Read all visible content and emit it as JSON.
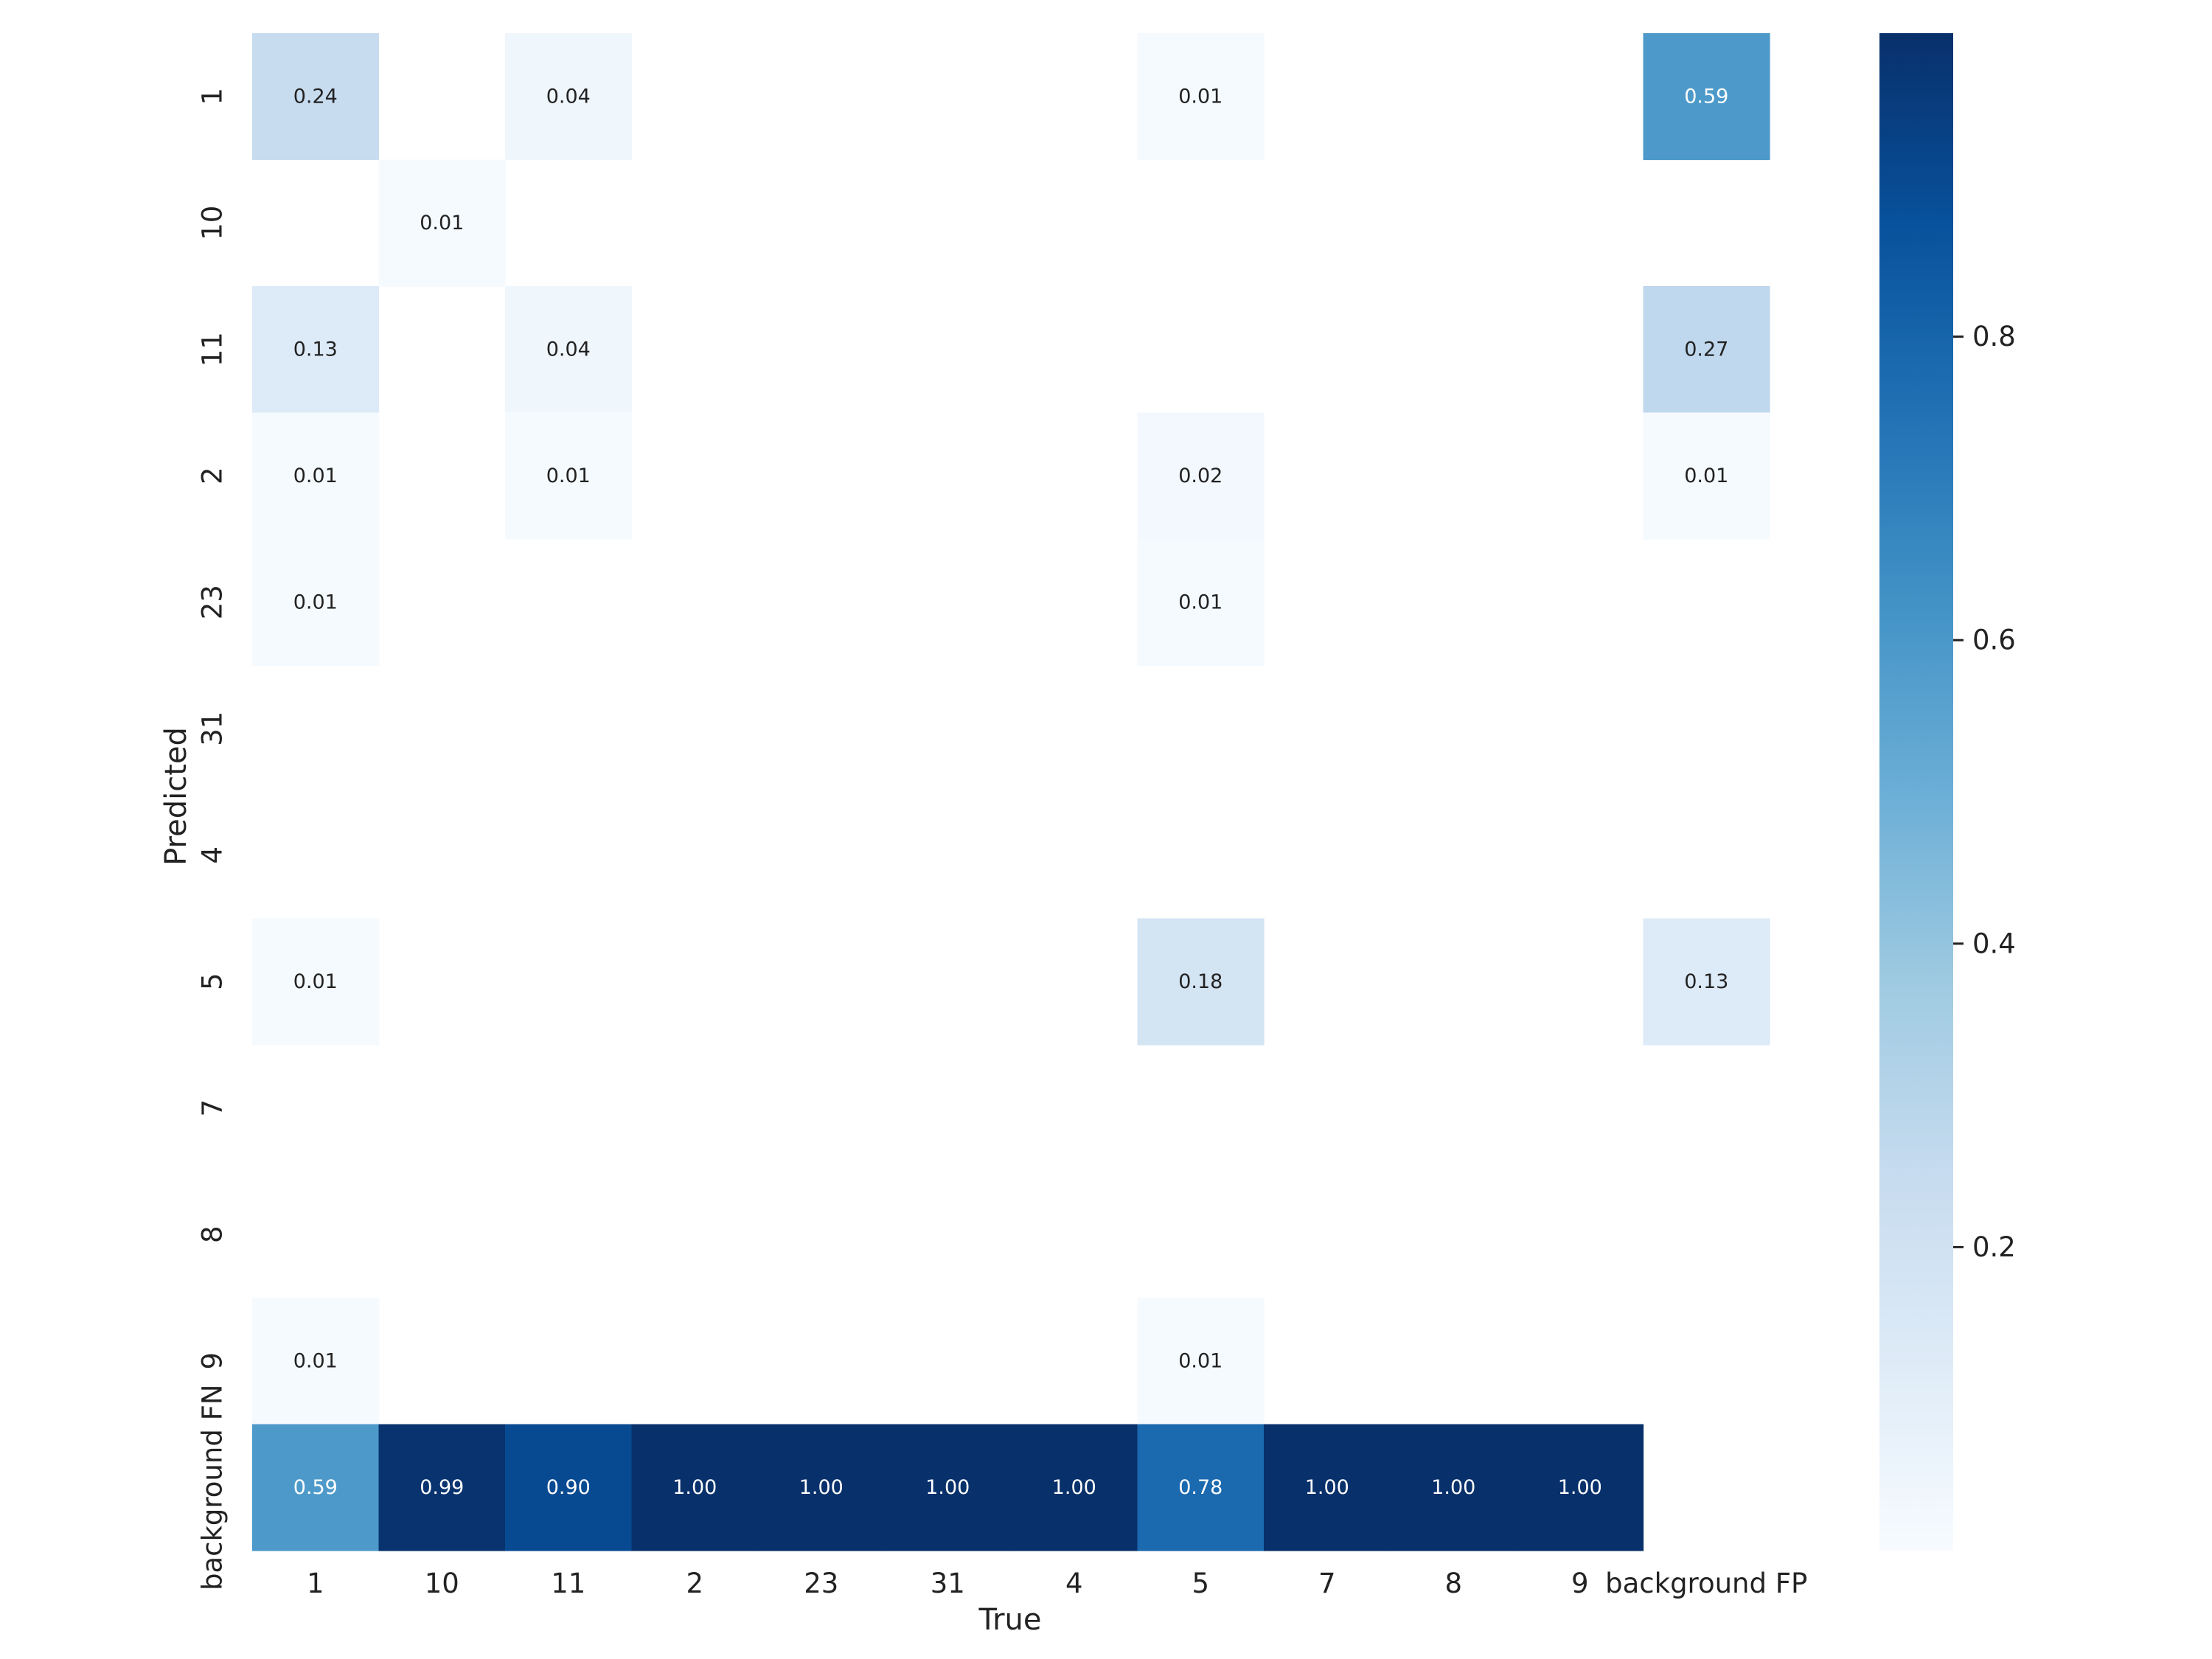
{
  "chart_data": {
    "type": "heatmap",
    "title": "",
    "xlabel": "True",
    "ylabel": "Predicted",
    "x_categories": [
      "1",
      "10",
      "11",
      "2",
      "23",
      "31",
      "4",
      "5",
      "7",
      "8",
      "9",
      "background FP"
    ],
    "y_categories": [
      "1",
      "10",
      "11",
      "2",
      "23",
      "31",
      "4",
      "5",
      "7",
      "8",
      "9",
      "background FN"
    ],
    "values": [
      [
        0.24,
        null,
        0.04,
        null,
        null,
        null,
        null,
        0.01,
        null,
        null,
        null,
        0.59
      ],
      [
        null,
        0.01,
        null,
        null,
        null,
        null,
        null,
        null,
        null,
        null,
        null,
        null
      ],
      [
        0.13,
        null,
        0.04,
        null,
        null,
        null,
        null,
        null,
        null,
        null,
        null,
        0.27
      ],
      [
        0.01,
        null,
        0.01,
        null,
        null,
        null,
        null,
        0.02,
        null,
        null,
        null,
        0.01
      ],
      [
        0.01,
        null,
        null,
        null,
        null,
        null,
        null,
        0.01,
        null,
        null,
        null,
        null
      ],
      [
        null,
        null,
        null,
        null,
        null,
        null,
        null,
        null,
        null,
        null,
        null,
        null
      ],
      [
        null,
        null,
        null,
        null,
        null,
        null,
        null,
        null,
        null,
        null,
        null,
        null
      ],
      [
        0.01,
        null,
        null,
        null,
        null,
        null,
        null,
        0.18,
        null,
        null,
        null,
        0.13
      ],
      [
        null,
        null,
        null,
        null,
        null,
        null,
        null,
        null,
        null,
        null,
        null,
        null
      ],
      [
        null,
        null,
        null,
        null,
        null,
        null,
        null,
        null,
        null,
        null,
        null,
        null
      ],
      [
        0.01,
        null,
        null,
        null,
        null,
        null,
        null,
        0.01,
        null,
        null,
        null,
        null
      ],
      [
        0.59,
        0.99,
        0.9,
        1.0,
        1.0,
        1.0,
        1.0,
        0.78,
        1.0,
        1.0,
        1.0,
        null
      ]
    ],
    "value_labels": [
      [
        "0.24",
        "",
        "0.04",
        "",
        "",
        "",
        "",
        "0.01",
        "",
        "",
        "",
        "0.59"
      ],
      [
        "",
        "0.01",
        "",
        "",
        "",
        "",
        "",
        "",
        "",
        "",
        "",
        ""
      ],
      [
        "0.13",
        "",
        "0.04",
        "",
        "",
        "",
        "",
        "",
        "",
        "",
        "",
        "0.27"
      ],
      [
        "0.01",
        "",
        "0.01",
        "",
        "",
        "",
        "",
        "0.02",
        "",
        "",
        "",
        "0.01"
      ],
      [
        "0.01",
        "",
        "",
        "",
        "",
        "",
        "",
        "0.01",
        "",
        "",
        "",
        ""
      ],
      [
        "",
        "",
        "",
        "",
        "",
        "",
        "",
        "",
        "",
        "",
        "",
        ""
      ],
      [
        "",
        "",
        "",
        "",
        "",
        "",
        "",
        "",
        "",
        "",
        "",
        ""
      ],
      [
        "0.01",
        "",
        "",
        "",
        "",
        "",
        "",
        "0.18",
        "",
        "",
        "",
        "0.13"
      ],
      [
        "",
        "",
        "",
        "",
        "",
        "",
        "",
        "",
        "",
        "",
        "",
        ""
      ],
      [
        "",
        "",
        "",
        "",
        "",
        "",
        "",
        "",
        "",
        "",
        "",
        ""
      ],
      [
        "0.01",
        "",
        "",
        "",
        "",
        "",
        "",
        "0.01",
        "",
        "",
        "",
        ""
      ],
      [
        "0.59",
        "0.99",
        "0.90",
        "1.00",
        "1.00",
        "1.00",
        "1.00",
        "0.78",
        "1.00",
        "1.00",
        "1.00",
        ""
      ]
    ],
    "colorbar": {
      "colormap": "Blues",
      "range": [
        0.0,
        1.0
      ],
      "ticks": [
        0.2,
        0.4,
        0.6,
        0.8
      ],
      "tick_labels": [
        "0.2",
        "0.4",
        "0.6",
        "0.8"
      ]
    },
    "grid": false,
    "legend": "colorbar-right"
  }
}
